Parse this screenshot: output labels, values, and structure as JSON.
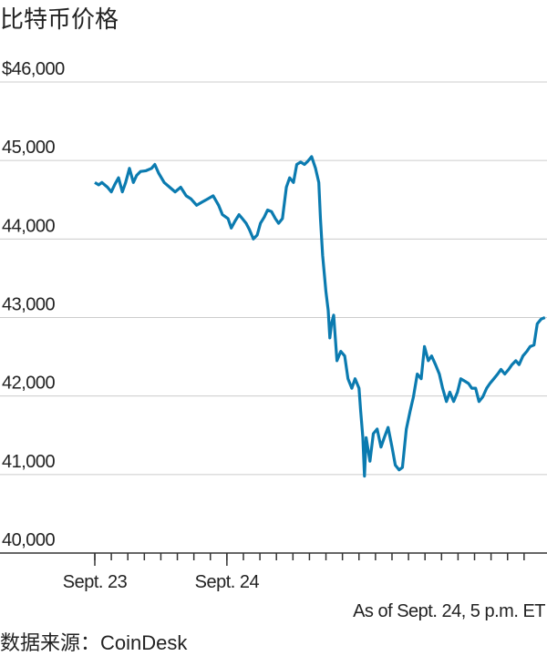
{
  "chart_data": {
    "type": "line",
    "title": "比特币价格",
    "note": "As of Sept. 24, 5 p.m. ET",
    "source": "数据来源：CoinDesk",
    "color": "#0b7bb0",
    "x": [
      0,
      0.7,
      1.3,
      2.3,
      3.0,
      3.6,
      4.3,
      5.0,
      5.6,
      6.3,
      7.0,
      7.6,
      8.3,
      9.3,
      10.3,
      10.9,
      11.6,
      12.6,
      13.6,
      14.6,
      15.6,
      16.6,
      17.5,
      18.5,
      19.5,
      20.5,
      21.5,
      22.5,
      23.2,
      24.2,
      24.8,
      25.5,
      26.2,
      26.8,
      27.5,
      28.1,
      28.8,
      29.5,
      30.1,
      30.8,
      31.4,
      32.1,
      32.8,
      33.4,
      34.1,
      34.8,
      35.4,
      36.1,
      36.7,
      37.4,
      38.1,
      38.7,
      39.4,
      40.1,
      40.7,
      41.0,
      41.4,
      41.7,
      42.0,
      42.4,
      42.7,
      43.0,
      43.4,
      43.7,
      44.0,
      44.7,
      45.4,
      46.0,
      46.7,
      47.3,
      48.0,
      48.3,
      48.7,
      49.0,
      49.3,
      50.0,
      50.6,
      51.3,
      52.0,
      52.6,
      53.3,
      54.0,
      54.6,
      55.3,
      55.9,
      56.6,
      57.3,
      57.9,
      58.6,
      59.3,
      59.9,
      60.6,
      61.2,
      61.9,
      62.6,
      63.2,
      63.9,
      64.5,
      65.2,
      65.9,
      66.5,
      67.2,
      67.9,
      68.5,
      69.2,
      69.8,
      70.5,
      71.2,
      71.8,
      72.5,
      73.2,
      73.8,
      74.5,
      75.2,
      75.8,
      76.5,
      77.1,
      77.8,
      78.5,
      79.1,
      79.8,
      80.4,
      81.1,
      81.8
    ],
    "values": [
      44720,
      44690,
      44720,
      44660,
      44600,
      44690,
      44780,
      44600,
      44720,
      44900,
      44720,
      44810,
      44860,
      44870,
      44900,
      44950,
      44840,
      44720,
      44660,
      44600,
      44660,
      44550,
      44510,
      44430,
      44470,
      44510,
      44550,
      44430,
      44310,
      44260,
      44140,
      44230,
      44310,
      44260,
      44200,
      44120,
      44000,
      44050,
      44200,
      44280,
      44370,
      44350,
      44260,
      44200,
      44260,
      44660,
      44780,
      44720,
      44950,
      44980,
      44950,
      44990,
      45050,
      44900,
      44720,
      44260,
      43790,
      43560,
      43330,
      43090,
      42740,
      42920,
      43030,
      42740,
      42450,
      42570,
      42510,
      42220,
      42100,
      42220,
      42100,
      41810,
      41470,
      40980,
      41470,
      41170,
      41520,
      41580,
      41350,
      41470,
      41600,
      41350,
      41120,
      41060,
      41090,
      41580,
      41810,
      41990,
      42280,
      42220,
      42630,
      42450,
      42510,
      42400,
      42280,
      42100,
      41930,
      42050,
      41930,
      42050,
      42220,
      42190,
      42160,
      42100,
      42100,
      41930,
      41990,
      42100,
      42160,
      42220,
      42280,
      42340,
      42280,
      42340,
      42400,
      42450,
      42400,
      42510,
      42570,
      42630,
      42650,
      42920,
      42980,
      43000
    ],
    "xlim": [
      0,
      82
    ],
    "xticks": [
      {
        "value": 0,
        "label": "Sept. 23"
      },
      {
        "value": 24,
        "label": "Sept. 24"
      }
    ],
    "minor_xticks": [
      0,
      3,
      6,
      9,
      12,
      15,
      18,
      21,
      24,
      27,
      30,
      33,
      36,
      39,
      42,
      45,
      48,
      51,
      54,
      57,
      60,
      63,
      66,
      69,
      72,
      75,
      78
    ],
    "ylim": [
      40000,
      46000
    ],
    "yticks": [
      {
        "value": 40000,
        "label": "40,000"
      },
      {
        "value": 41000,
        "label": "41,000"
      },
      {
        "value": 42000,
        "label": "42,000"
      },
      {
        "value": 43000,
        "label": "43,000"
      },
      {
        "value": 44000,
        "label": "44,000"
      },
      {
        "value": 45000,
        "label": "45,000"
      },
      {
        "value": 46000,
        "label": "$46,000"
      }
    ],
    "grid": true
  }
}
